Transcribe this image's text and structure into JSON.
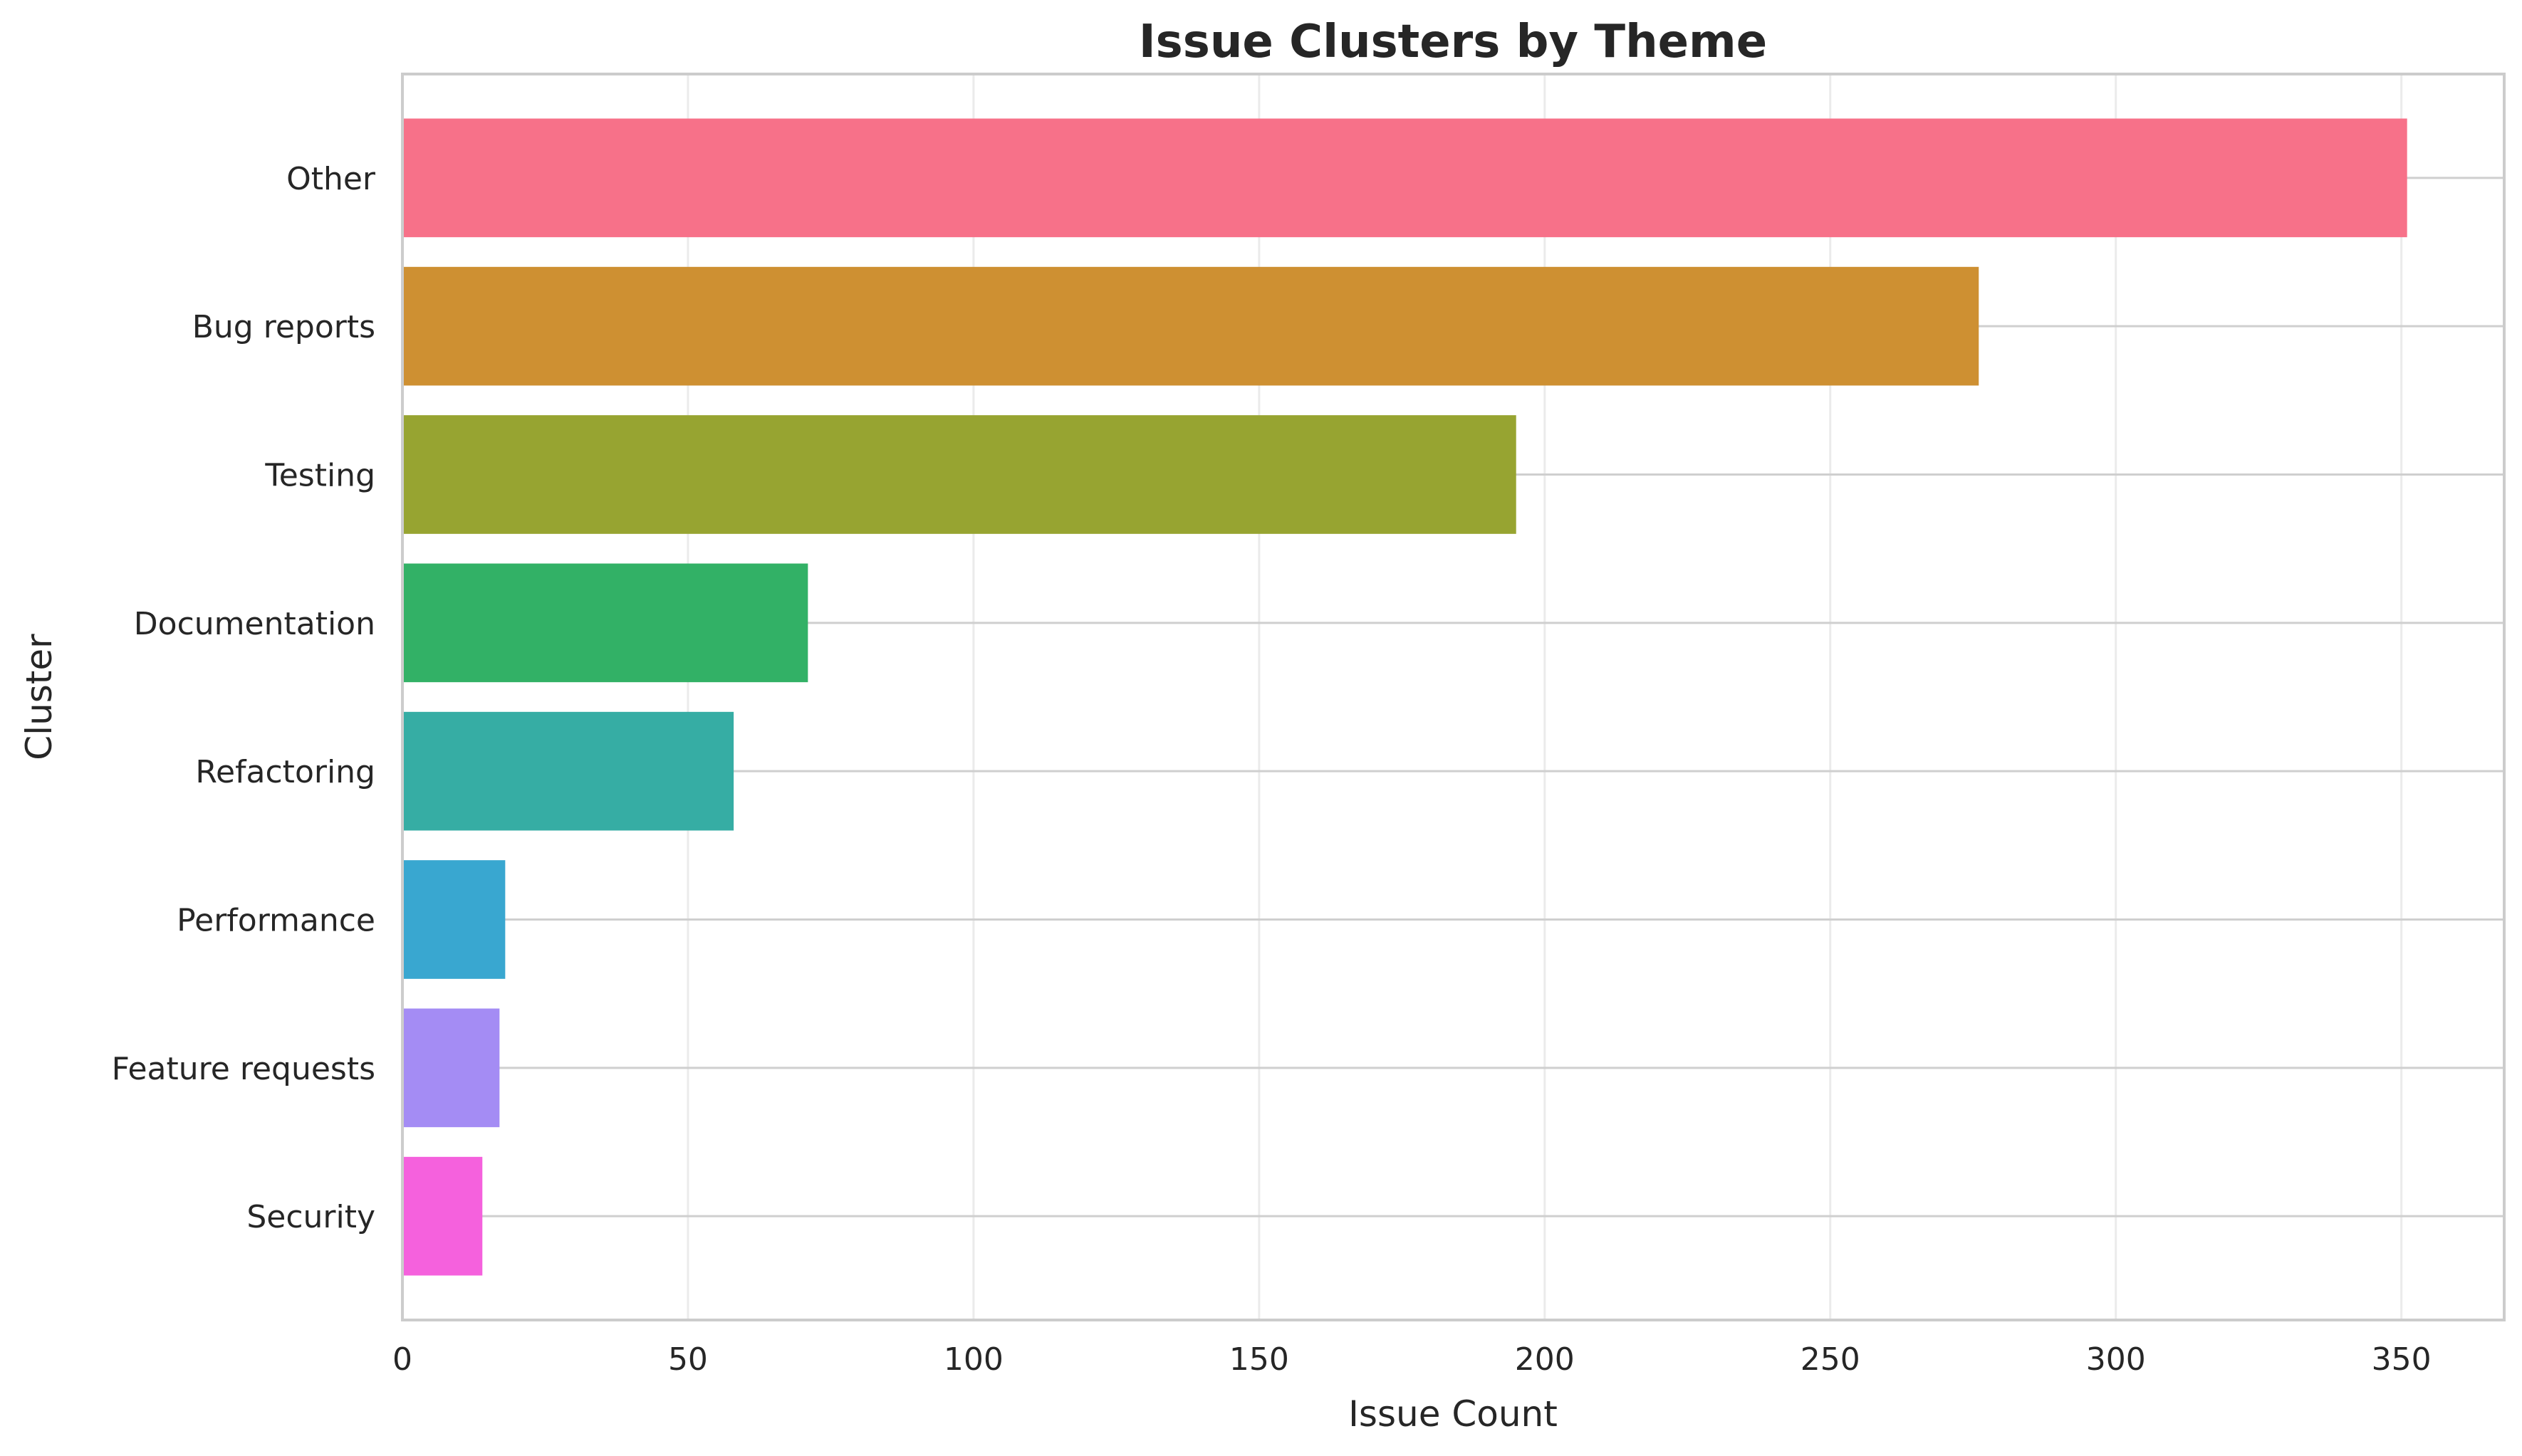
{
  "chart_data": {
    "type": "bar",
    "orientation": "horizontal",
    "title": "Issue Clusters by Theme",
    "xlabel": "Issue Count",
    "ylabel": "Cluster",
    "categories": [
      "Other",
      "Bug reports",
      "Testing",
      "Documentation",
      "Refactoring",
      "Performance",
      "Feature requests",
      "Security"
    ],
    "values": [
      351,
      276,
      195,
      71,
      58,
      18,
      17,
      14
    ],
    "colors": [
      "#f77189",
      "#ce9032",
      "#97a431",
      "#32b166",
      "#36ada4",
      "#39a7d0",
      "#a48cf4",
      "#f561dd"
    ],
    "xlim": [
      0,
      368
    ],
    "xticks": [
      0,
      50,
      100,
      150,
      200,
      250,
      300,
      350
    ],
    "xtick_labels": [
      "0",
      "50",
      "100",
      "150",
      "200",
      "250",
      "300",
      "350"
    ],
    "grid": true,
    "legend": "none"
  }
}
